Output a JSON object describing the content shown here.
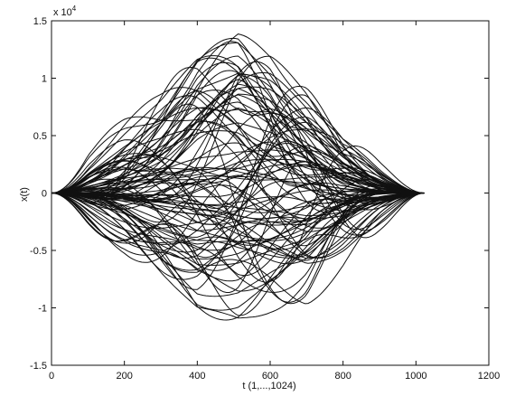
{
  "chart_data": {
    "type": "line",
    "title": "",
    "xlabel": "t (1,...,1024)",
    "ylabel": "x(t)",
    "y_multiplier_label": "x 10",
    "y_multiplier_exponent": "4",
    "xlim": [
      0,
      1200
    ],
    "ylim": [
      -1.5,
      1.5
    ],
    "x_ticks": [
      0,
      200,
      400,
      600,
      800,
      1000,
      1200
    ],
    "y_ticks": [
      -1.5,
      -1,
      -0.5,
      0,
      0.5,
      1,
      1.5
    ],
    "x_tick_labels": [
      "0",
      "200",
      "400",
      "600",
      "800",
      "1000",
      "1200"
    ],
    "y_tick_labels": [
      "-1.5",
      "-1",
      "-0.5",
      "0",
      "0.5",
      "1",
      "1.5"
    ],
    "grid": false,
    "legend": "none",
    "line_color": "#111111",
    "series_count": 100,
    "series_note": "100 overlapping sample paths over t = 1..1024, each starting and ending at 0",
    "envelope": {
      "t": [
        0,
        100,
        200,
        300,
        400,
        512,
        600,
        700,
        800,
        900,
        1024
      ],
      "upper": [
        0,
        0.42,
        0.68,
        0.9,
        1.22,
        1.4,
        1.3,
        1.02,
        0.58,
        0.28,
        0
      ],
      "lower": [
        0,
        -0.3,
        -0.55,
        -0.85,
        -1.12,
        -1.16,
        -1.07,
        -1.0,
        -0.7,
        -0.35,
        0
      ]
    }
  }
}
